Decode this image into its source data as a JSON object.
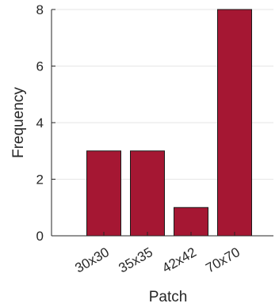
{
  "chart_data": {
    "type": "bar",
    "title": "",
    "xlabel": "Patch",
    "ylabel": "Frequency",
    "categories": [
      "30x30",
      "35x35",
      "42x42",
      "70x70"
    ],
    "values": [
      3,
      3,
      1,
      8
    ],
    "ylim": [
      0,
      8
    ],
    "yticks": [
      "0",
      "2",
      "4",
      "6",
      "8"
    ],
    "grid": true,
    "legend": "none",
    "bar_color": "#A51733",
    "bar_edge_color": "#1a1a1a",
    "axis_color": "#262626",
    "grid_color": "#e6e6e6"
  }
}
